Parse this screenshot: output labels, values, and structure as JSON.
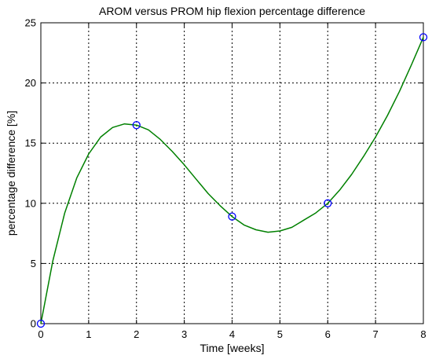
{
  "chart_data": {
    "type": "line",
    "title": "AROM versus PROM hip flexion percentage difference",
    "xlabel": "Time [weeks]",
    "ylabel": "percentage difference [%]",
    "xlim": [
      0,
      8
    ],
    "ylim": [
      0,
      25
    ],
    "x_ticks": [
      "0",
      "1",
      "2",
      "3",
      "4",
      "5",
      "6",
      "7",
      "8"
    ],
    "y_ticks": [
      "0",
      "5",
      "10",
      "15",
      "20",
      "25"
    ],
    "grid": true,
    "series": [
      {
        "style": "markers",
        "marker": "circle",
        "color": "#0000ff",
        "x": [
          0,
          2,
          4,
          6,
          8
        ],
        "y": [
          0,
          16.5,
          8.9,
          10.0,
          23.8
        ]
      },
      {
        "style": "line",
        "color": "#008000",
        "x": [
          0,
          0.25,
          0.5,
          0.75,
          1.0,
          1.25,
          1.5,
          1.75,
          2.0,
          2.25,
          2.5,
          2.75,
          3.0,
          3.25,
          3.5,
          3.75,
          4.0,
          4.25,
          4.5,
          4.75,
          5.0,
          5.25,
          5.5,
          5.75,
          6.0,
          6.25,
          6.5,
          6.75,
          7.0,
          7.25,
          7.5,
          7.75,
          8.0
        ],
        "y": [
          0,
          5.2,
          9.2,
          12.1,
          14.1,
          15.5,
          16.3,
          16.6,
          16.5,
          16.1,
          15.3,
          14.3,
          13.2,
          12.0,
          10.8,
          9.8,
          8.9,
          8.2,
          7.8,
          7.6,
          7.7,
          8.0,
          8.6,
          9.2,
          10.0,
          11.1,
          12.4,
          13.9,
          15.5,
          17.3,
          19.3,
          21.5,
          23.8
        ]
      }
    ]
  }
}
